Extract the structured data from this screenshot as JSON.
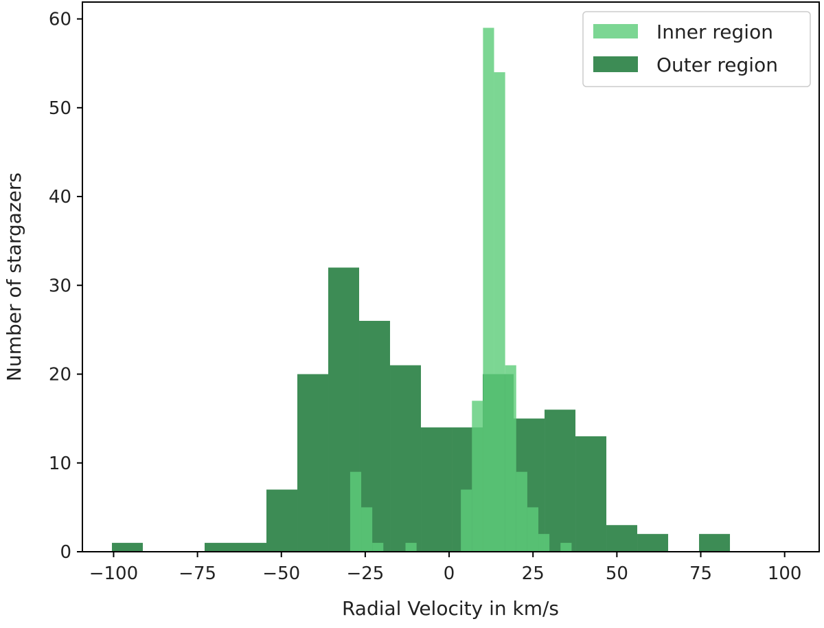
{
  "chart_data": {
    "type": "bar",
    "xlabel": "Radial Velocity in km/s",
    "ylabel": "Number of stargazers",
    "xlim": [
      -109.3,
      110.3
    ],
    "ylim": [
      0,
      61.9
    ],
    "xticks": [
      -100,
      -75,
      -50,
      -25,
      0,
      25,
      50,
      75,
      100
    ],
    "xtick_labels": [
      "−100",
      "−75",
      "−50",
      "−25",
      "0",
      "25",
      "50",
      "75",
      "100"
    ],
    "yticks": [
      0,
      10,
      20,
      30,
      40,
      50,
      60
    ],
    "ytick_labels": [
      "0",
      "10",
      "20",
      "30",
      "40",
      "50",
      "60"
    ],
    "grid": false,
    "legend_position": "top-right",
    "series": [
      {
        "name": "Outer region",
        "color": "#3d8c55",
        "bin_start": -100.5,
        "bin_width": 9.21,
        "values": [
          1,
          0,
          0,
          1,
          1,
          7,
          20,
          32,
          26,
          21,
          14,
          14,
          20,
          15,
          16,
          13,
          3,
          2,
          0,
          2
        ]
      },
      {
        "name": "Inner region",
        "color": "#5ecc7a",
        "opacity": 0.81,
        "bin_start": -29.5,
        "bin_width": 3.3,
        "values": [
          9,
          5,
          1,
          0,
          0,
          1,
          0,
          0,
          0,
          0,
          7,
          17,
          59,
          54,
          21,
          9,
          5,
          2,
          0,
          1
        ]
      }
    ]
  }
}
